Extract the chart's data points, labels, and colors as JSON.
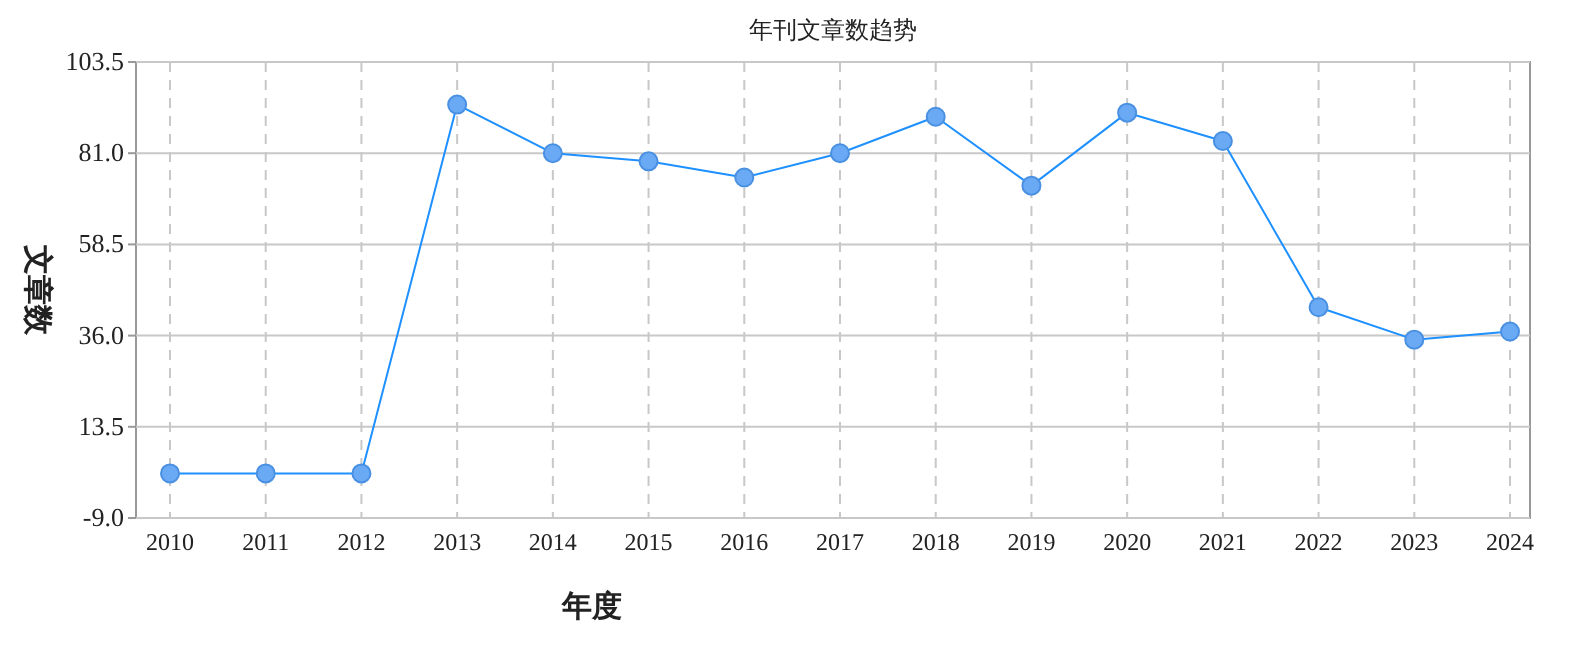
{
  "chart_data": {
    "type": "line",
    "title": "年刊文章数趋势",
    "xlabel": "年度",
    "ylabel": "文章数",
    "categories": [
      "2010",
      "2011",
      "2012",
      "2013",
      "2014",
      "2015",
      "2016",
      "2017",
      "2018",
      "2019",
      "2020",
      "2021",
      "2022",
      "2023",
      "2024"
    ],
    "series": [
      {
        "color": "#1e90ff",
        "values": [
          2,
          2,
          2,
          93,
          81,
          79,
          75,
          81,
          90,
          73,
          91,
          84,
          43,
          35,
          37
        ]
      }
    ],
    "ylim": [
      -9,
      103.5
    ],
    "yticks": [
      {
        "value": -9,
        "label": "-9.0"
      },
      13.5,
      {
        "value": 36,
        "label": "36.0"
      },
      58.5,
      {
        "value": 81,
        "label": "81.0"
      },
      103.5
    ],
    "grid": true,
    "marker": "circle",
    "line_style": "solid"
  }
}
